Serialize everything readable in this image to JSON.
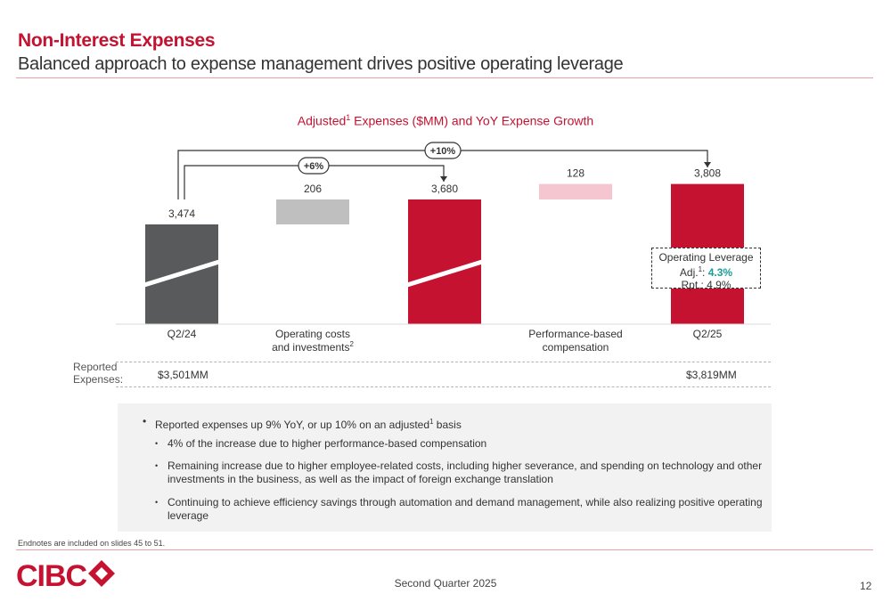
{
  "header": {
    "title": "Non-Interest Expenses",
    "subtitle": "Balanced approach to expense management drives positive operating leverage"
  },
  "chart_title_main": "Adjusted",
  "chart_title_sup": "1",
  "chart_title_rest": " Expenses ($MM) and YoY Expense Growth",
  "chart_data": {
    "type": "bar",
    "subtype": "waterfall",
    "title": "Adjusted1 Expenses ($MM) and YoY Expense Growth",
    "categories": [
      "Q2/24",
      "Operating costs and investments2",
      "",
      "Performance-based compensation",
      "Q2/25"
    ],
    "values": [
      3474,
      206,
      3680,
      128,
      3808
    ],
    "value_labels": [
      "3,474",
      "206",
      "3,680",
      "128",
      "3,808"
    ],
    "bar_kind": [
      "total",
      "increment",
      "total",
      "increment",
      "total"
    ],
    "colors": {
      "q2_24": "#595a5c",
      "operating_costs": "#bfbfbf",
      "subtotal": "#c41230",
      "performance_comp": "#f5c6d0",
      "q2_25": "#c41230"
    },
    "y_axis_broken": true,
    "growth_annotations": [
      {
        "label": "+6%",
        "from": "Q2/24",
        "to": "subtotal"
      },
      {
        "label": "+10%",
        "from": "Q2/24",
        "to": "Q2/25"
      }
    ]
  },
  "category_labels": {
    "q2_24": "Q2/24",
    "opcost_line1": "Operating costs",
    "opcost_line2": "and investments",
    "opcost_sup": "2",
    "perf_line1": "Performance-based",
    "perf_line2": "compensation",
    "q2_25": "Q2/25"
  },
  "reported": {
    "label_line1": "Reported",
    "label_line2": "Expenses:",
    "q2_24": "$3,501MM",
    "q2_25": "$3,819MM"
  },
  "operating_leverage": {
    "title": "Operating Leverage",
    "adj_label": "Adj.",
    "adj_sup": "1",
    "adj_colon": ": ",
    "adj_value": "4.3%",
    "rpt": "Rpt.: 4.9%"
  },
  "bullets": {
    "b1_pre": "Reported expenses up 9% YoY, or up 10% on an adjusted",
    "b1_sup": "1",
    "b1_post": " basis",
    "b2": "4% of the increase due to higher performance-based compensation",
    "b3_line1": "Remaining increase due to higher employee-related costs, including higher severance, and spending on technology and other",
    "b3_line2": "investments in the business, as well as the impact of foreign exchange translation",
    "b4_line1": "Continuing to achieve efficiency savings through automation and demand management, while also realizing positive operating",
    "b4_line2": "leverage"
  },
  "footer": {
    "endnote": "Endnotes are included on slides 45 to 51.",
    "quarter": "Second Quarter 2025",
    "page": "12",
    "logo_text": "CIBC"
  },
  "theme": {
    "brand_red": "#c41230",
    "teal": "#1a9e97"
  }
}
